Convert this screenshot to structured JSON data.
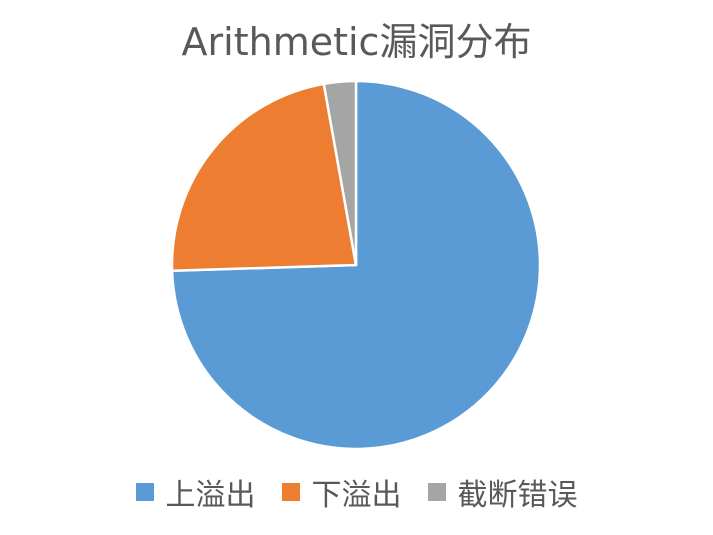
{
  "chart_data": {
    "type": "pie",
    "title": "Arithmetic漏洞分布",
    "categories": [
      "上溢出",
      "下溢出",
      "截断错误"
    ],
    "values": [
      74.5,
      22.7,
      2.8
    ],
    "colors": [
      "#5B9BD5",
      "#ED7D31",
      "#A5A5A5"
    ],
    "start_angle_deg": 0,
    "direction": "clockwise",
    "legend_position": "bottom"
  }
}
